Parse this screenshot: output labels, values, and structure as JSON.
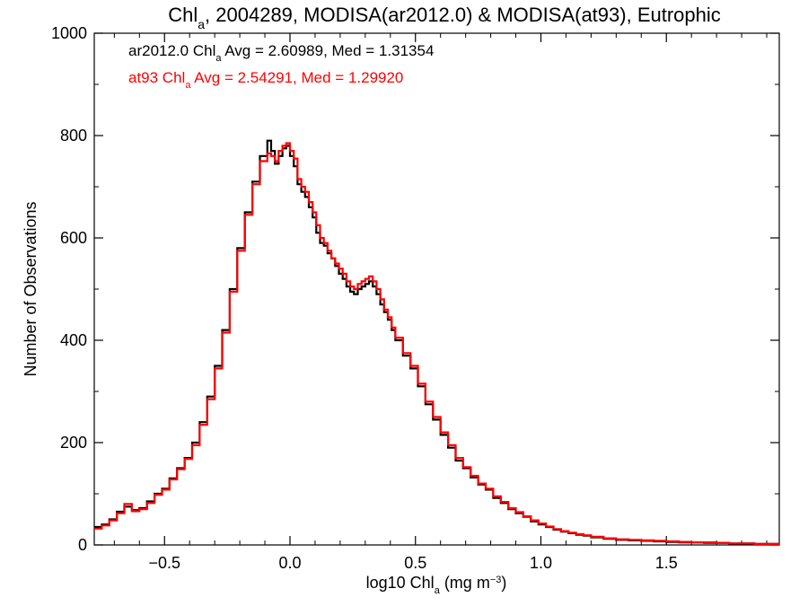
{
  "chart_data": {
    "type": "line",
    "title": {
      "parts": [
        "Chl",
        "a",
        ", 2004289, MODISA(ar2012.0) & MODISA(at93), Eutrophic"
      ]
    },
    "xlabel": {
      "parts": [
        "log10 Chl",
        "a",
        " (mg m",
        "−3",
        ")"
      ]
    },
    "ylabel": "Number of Observations",
    "xlim": [
      -0.78,
      1.95
    ],
    "ylim": [
      0,
      1000
    ],
    "x_ticks": [
      -0.5,
      0.0,
      0.5,
      1.0,
      1.5
    ],
    "x_tick_labels": [
      "−0.5",
      "0.0",
      "0.5",
      "1.0",
      "1.5"
    ],
    "y_ticks": [
      0,
      200,
      400,
      600,
      800,
      1000
    ],
    "y_tick_labels": [
      "0",
      "200",
      "400",
      "600",
      "800",
      "1000"
    ],
    "grid": false,
    "legend_position": "top-left",
    "series": [
      {
        "name": "ar2012.0",
        "color": "#000000",
        "annotation": {
          "parts": [
            "ar2012.0 Chl",
            "a",
            " Avg = 2.60989, Med = 1.31354"
          ]
        },
        "x": [
          -0.78,
          -0.75,
          -0.72,
          -0.69,
          -0.66,
          -0.63,
          -0.6,
          -0.57,
          -0.54,
          -0.51,
          -0.48,
          -0.45,
          -0.42,
          -0.39,
          -0.36,
          -0.33,
          -0.3,
          -0.27,
          -0.24,
          -0.21,
          -0.18,
          -0.15,
          -0.12,
          -0.09,
          -0.075,
          -0.06,
          -0.045,
          -0.03,
          -0.015,
          0.0,
          0.015,
          0.03,
          0.045,
          0.06,
          0.075,
          0.09,
          0.105,
          0.12,
          0.135,
          0.15,
          0.165,
          0.18,
          0.195,
          0.21,
          0.225,
          0.24,
          0.255,
          0.27,
          0.285,
          0.3,
          0.315,
          0.33,
          0.345,
          0.36,
          0.375,
          0.39,
          0.405,
          0.42,
          0.45,
          0.48,
          0.51,
          0.54,
          0.57,
          0.6,
          0.63,
          0.66,
          0.69,
          0.72,
          0.75,
          0.78,
          0.81,
          0.84,
          0.87,
          0.9,
          0.93,
          0.96,
          0.99,
          1.02,
          1.05,
          1.08,
          1.11,
          1.14,
          1.17,
          1.2,
          1.25,
          1.3,
          1.35,
          1.4,
          1.45,
          1.5,
          1.55,
          1.6,
          1.65,
          1.7,
          1.75,
          1.8,
          1.85,
          1.9,
          1.95
        ],
        "y": [
          35,
          40,
          50,
          65,
          75,
          68,
          72,
          85,
          100,
          110,
          130,
          150,
          170,
          200,
          240,
          290,
          350,
          420,
          500,
          580,
          650,
          710,
          760,
          790,
          770,
          745,
          760,
          775,
          780,
          760,
          740,
          705,
          690,
          680,
          660,
          640,
          610,
          590,
          585,
          570,
          560,
          545,
          530,
          520,
          505,
          495,
          490,
          500,
          505,
          510,
          515,
          505,
          490,
          470,
          455,
          440,
          420,
          400,
          370,
          345,
          310,
          275,
          245,
          215,
          190,
          165,
          150,
          132,
          118,
          108,
          92,
          82,
          70,
          62,
          55,
          46,
          40,
          35,
          30,
          26,
          23,
          20,
          18,
          15,
          12,
          10,
          9,
          8,
          7,
          6,
          5,
          5,
          4,
          4,
          3,
          3,
          2,
          2,
          1
        ]
      },
      {
        "name": "at93",
        "color": "#ff0000",
        "annotation": {
          "parts": [
            "at93 Chl",
            "a",
            " Avg = 2.54291, Med = 1.29920"
          ]
        },
        "x": [
          -0.78,
          -0.75,
          -0.72,
          -0.69,
          -0.66,
          -0.63,
          -0.6,
          -0.57,
          -0.54,
          -0.51,
          -0.48,
          -0.45,
          -0.42,
          -0.39,
          -0.36,
          -0.33,
          -0.3,
          -0.27,
          -0.24,
          -0.21,
          -0.18,
          -0.15,
          -0.12,
          -0.09,
          -0.075,
          -0.06,
          -0.045,
          -0.03,
          -0.015,
          0.0,
          0.015,
          0.03,
          0.045,
          0.06,
          0.075,
          0.09,
          0.105,
          0.12,
          0.135,
          0.15,
          0.165,
          0.18,
          0.195,
          0.21,
          0.225,
          0.24,
          0.255,
          0.27,
          0.285,
          0.3,
          0.315,
          0.33,
          0.345,
          0.36,
          0.375,
          0.39,
          0.405,
          0.42,
          0.45,
          0.48,
          0.51,
          0.54,
          0.57,
          0.6,
          0.63,
          0.66,
          0.69,
          0.72,
          0.75,
          0.78,
          0.81,
          0.84,
          0.87,
          0.9,
          0.93,
          0.96,
          0.99,
          1.02,
          1.05,
          1.08,
          1.11,
          1.14,
          1.17,
          1.2,
          1.25,
          1.3,
          1.35,
          1.4,
          1.45,
          1.5,
          1.55,
          1.6,
          1.65,
          1.7,
          1.75,
          1.8,
          1.85,
          1.9,
          1.95
        ],
        "y": [
          32,
          38,
          48,
          62,
          80,
          66,
          70,
          82,
          98,
          108,
          128,
          148,
          168,
          195,
          235,
          285,
          345,
          415,
          495,
          575,
          645,
          705,
          750,
          765,
          760,
          750,
          770,
          780,
          785,
          770,
          755,
          715,
          700,
          690,
          670,
          650,
          625,
          600,
          590,
          575,
          560,
          550,
          540,
          530,
          515,
          505,
          500,
          510,
          515,
          520,
          525,
          515,
          500,
          480,
          460,
          445,
          425,
          405,
          375,
          350,
          315,
          280,
          250,
          220,
          195,
          170,
          152,
          135,
          120,
          110,
          95,
          84,
          72,
          64,
          56,
          48,
          42,
          36,
          31,
          27,
          24,
          21,
          19,
          16,
          13,
          11,
          10,
          9,
          8,
          7,
          6,
          5,
          5,
          4,
          3,
          3,
          2,
          2,
          1
        ]
      }
    ]
  }
}
